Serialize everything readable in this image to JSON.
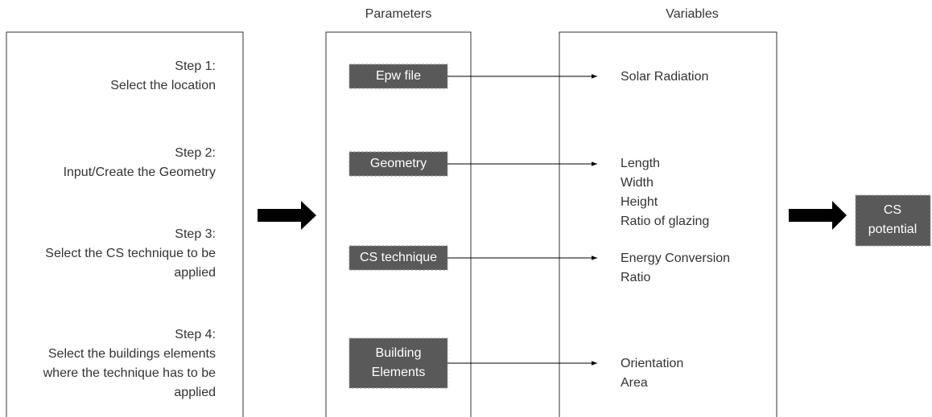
{
  "headers": {
    "parameters": "Parameters",
    "variables": "Variables"
  },
  "steps": [
    {
      "lines": [
        "Step 1:",
        "Select the location"
      ]
    },
    {
      "lines": [
        "Step 2:",
        "Input/Create the Geometry"
      ]
    },
    {
      "lines": [
        "Step 3:",
        "Select the CS technique to be",
        "applied"
      ]
    },
    {
      "lines": [
        "Step 4:",
        "Select the buildings elements",
        "where the technique has to be",
        "applied"
      ]
    }
  ],
  "parameters": [
    {
      "lines": [
        "Epw file"
      ]
    },
    {
      "lines": [
        "Geometry"
      ]
    },
    {
      "lines": [
        "CS technique"
      ]
    },
    {
      "lines": [
        "Building",
        "Elements"
      ]
    }
  ],
  "variables": [
    {
      "lines": [
        "Solar Radiation"
      ]
    },
    {
      "lines": [
        "Length",
        "Width",
        "Height",
        "Ratio of glazing"
      ]
    },
    {
      "lines": [
        "Energy Conversion",
        "Ratio"
      ]
    },
    {
      "lines": [
        "Orientation",
        "Area"
      ]
    }
  ],
  "output": {
    "lines": [
      "CS",
      "potential"
    ]
  }
}
